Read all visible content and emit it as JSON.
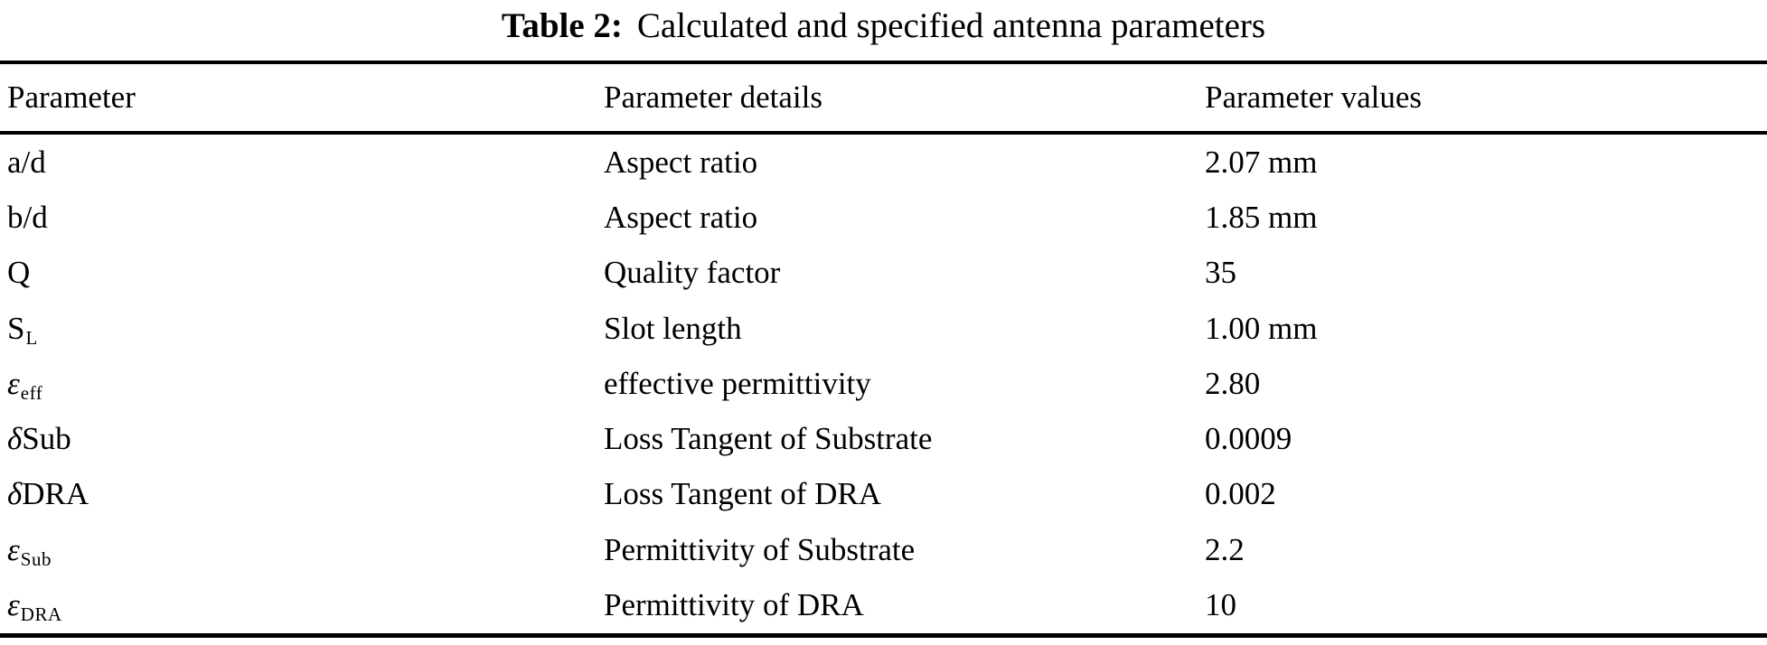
{
  "caption": {
    "label": "Table 2:",
    "text": "Calculated and specified antenna parameters"
  },
  "table": {
    "columns": [
      "Parameter",
      "Parameter details",
      "Parameter values"
    ],
    "rows": [
      {
        "param": {
          "symbol": "",
          "main": "a/d",
          "sub": ""
        },
        "details": "Aspect ratio",
        "value": "2.07 mm"
      },
      {
        "param": {
          "symbol": "",
          "main": "b/d",
          "sub": ""
        },
        "details": "Aspect ratio",
        "value": "1.85 mm"
      },
      {
        "param": {
          "symbol": "",
          "main": "Q",
          "sub": ""
        },
        "details": "Quality factor",
        "value": "35"
      },
      {
        "param": {
          "symbol": "",
          "main": "S",
          "sub": "L"
        },
        "details": "Slot length",
        "value": "1.00 mm"
      },
      {
        "param": {
          "symbol": "ε",
          "main": "",
          "sub": "eff"
        },
        "details": "effective permittivity",
        "value": "2.80"
      },
      {
        "param": {
          "symbol": "δ",
          "main": "Sub",
          "sub": ""
        },
        "details": "Loss Tangent of Substrate",
        "value": "0.0009"
      },
      {
        "param": {
          "symbol": "δ",
          "main": "DRA",
          "sub": ""
        },
        "details": "Loss Tangent of DRA",
        "value": "0.002"
      },
      {
        "param": {
          "symbol": "ε",
          "main": "",
          "sub": "Sub"
        },
        "details": "Permittivity of Substrate",
        "value": "2.2"
      },
      {
        "param": {
          "symbol": "ε",
          "main": "",
          "sub": "DRA"
        },
        "details": "Permittivity of DRA",
        "value": "10"
      }
    ]
  },
  "colors": {
    "text": "#000000",
    "background": "#ffffff",
    "rule": "#000000"
  }
}
